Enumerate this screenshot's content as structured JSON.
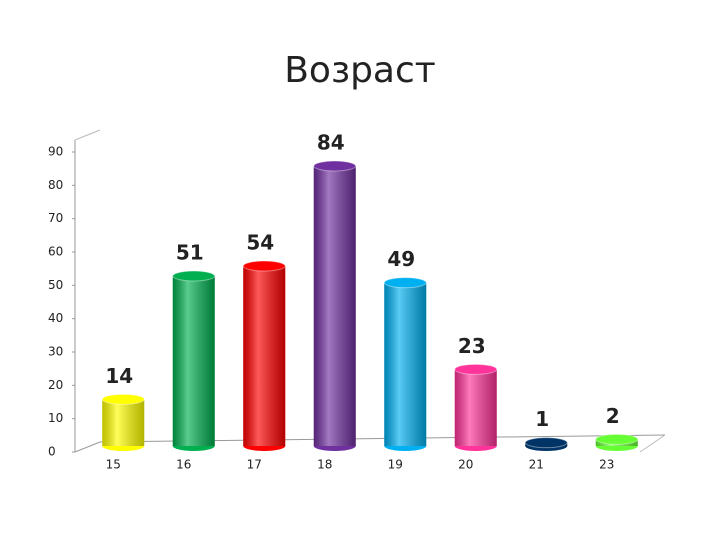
{
  "chart_data": {
    "type": "bar",
    "title": "Возраст",
    "categories": [
      "15",
      "16",
      "17",
      "18",
      "19",
      "20",
      "21",
      "23"
    ],
    "values": [
      14,
      51,
      54,
      84,
      49,
      23,
      1,
      2
    ],
    "colors": [
      "#ffff00",
      "#00b050",
      "#ff0000",
      "#7030a0",
      "#00b0f0",
      "#ff3399",
      "#003366",
      "#66ff33"
    ],
    "ylim": [
      0,
      90
    ],
    "yticks": [
      0,
      10,
      20,
      30,
      40,
      50,
      60,
      70,
      80,
      90
    ]
  }
}
